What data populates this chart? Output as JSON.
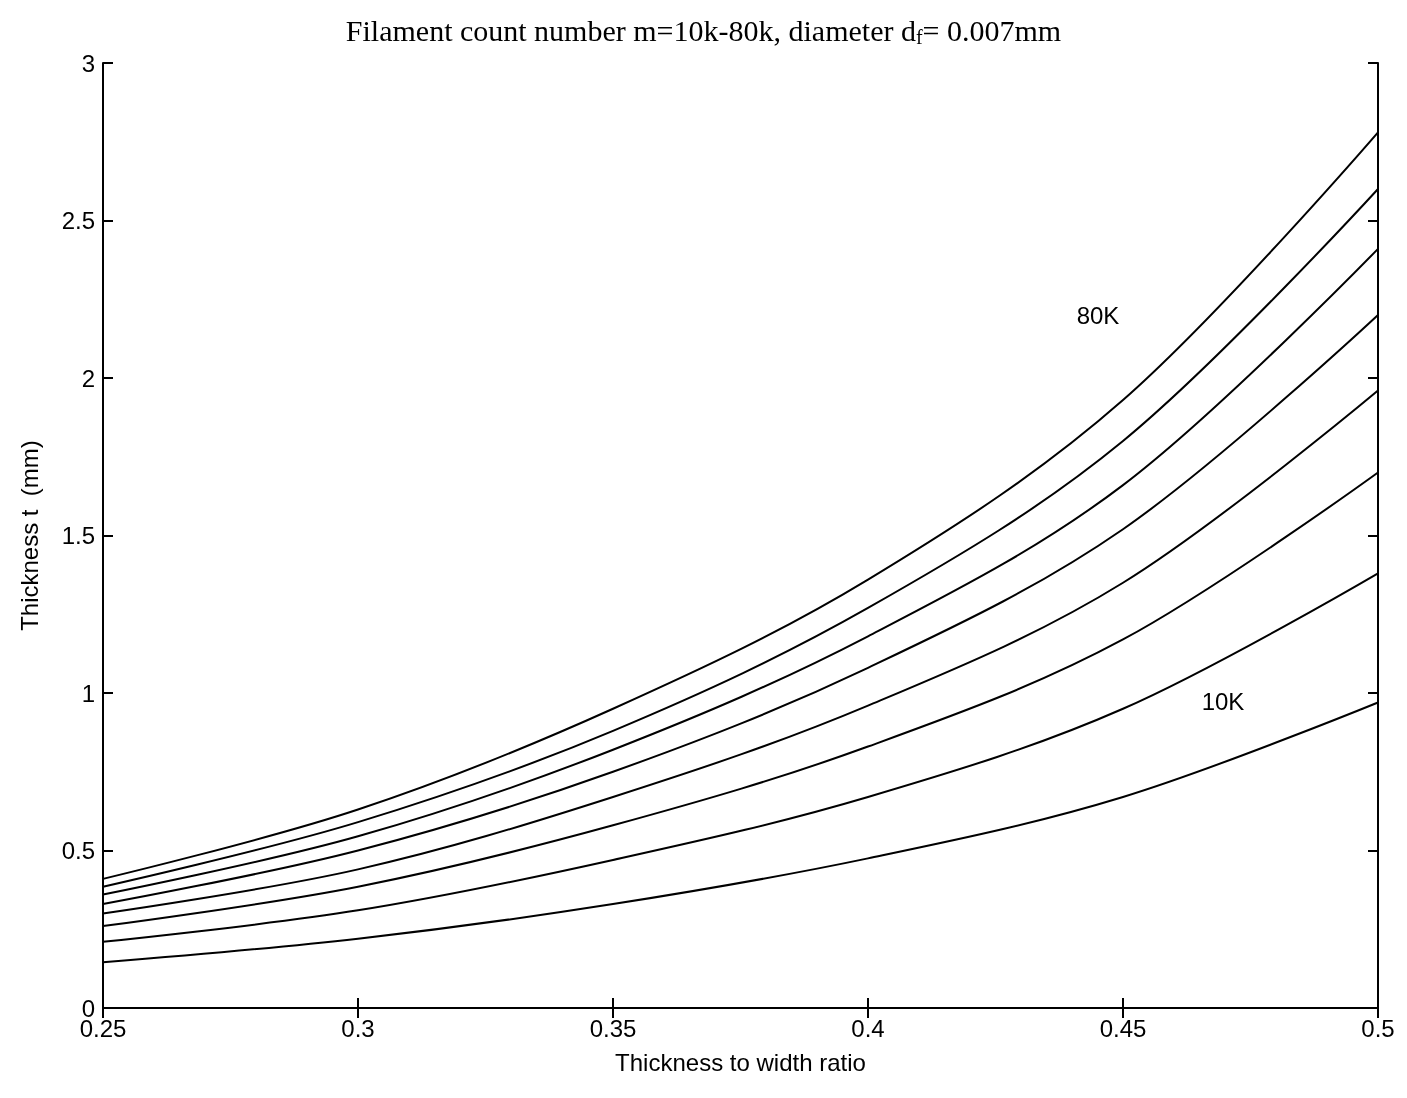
{
  "chart_data": {
    "type": "line",
    "title": "Filament count number m=10k-80k, diameter d$_{f}$= 0.007mm",
    "xlabel": "Thickness to width ratio",
    "ylabel": "Thickness t  (mm)",
    "x": [
      0.25,
      0.3,
      0.35,
      0.4,
      0.45,
      0.5
    ],
    "series": [
      {
        "name": "10K",
        "color": "#000000",
        "values": [
          0.145,
          0.22,
          0.33,
          0.475,
          0.67,
          0.97
        ]
      },
      {
        "color": "#000000",
        "values": [
          0.21,
          0.31,
          0.47,
          0.67,
          0.95,
          1.38
        ]
      },
      {
        "color": "#000000",
        "values": [
          0.26,
          0.385,
          0.58,
          0.83,
          1.17,
          1.7
        ]
      },
      {
        "color": "#000000",
        "values": [
          0.3,
          0.44,
          0.67,
          0.96,
          1.35,
          1.96
        ]
      },
      {
        "color": "#000000",
        "values": [
          0.33,
          0.5,
          0.75,
          1.08,
          1.52,
          2.2
        ]
      },
      {
        "color": "#000000",
        "values": [
          0.36,
          0.545,
          0.82,
          1.18,
          1.66,
          2.41
        ]
      },
      {
        "color": "#000000",
        "values": [
          0.385,
          0.59,
          0.88,
          1.27,
          1.8,
          2.6
        ]
      },
      {
        "name": "80K",
        "color": "#000000",
        "values": [
          0.41,
          0.63,
          0.95,
          1.36,
          1.93,
          2.78
        ]
      }
    ],
    "xlim": [
      0.25,
      0.5
    ],
    "xticks": [
      0.25,
      0.3,
      0.35,
      0.4,
      0.45,
      0.5
    ],
    "ylim": [
      0,
      3
    ],
    "yticks": [
      0,
      0.5,
      1,
      1.5,
      2,
      2.5,
      3
    ],
    "grid": false,
    "legend": false,
    "marker": "none",
    "line_style": "solid"
  }
}
